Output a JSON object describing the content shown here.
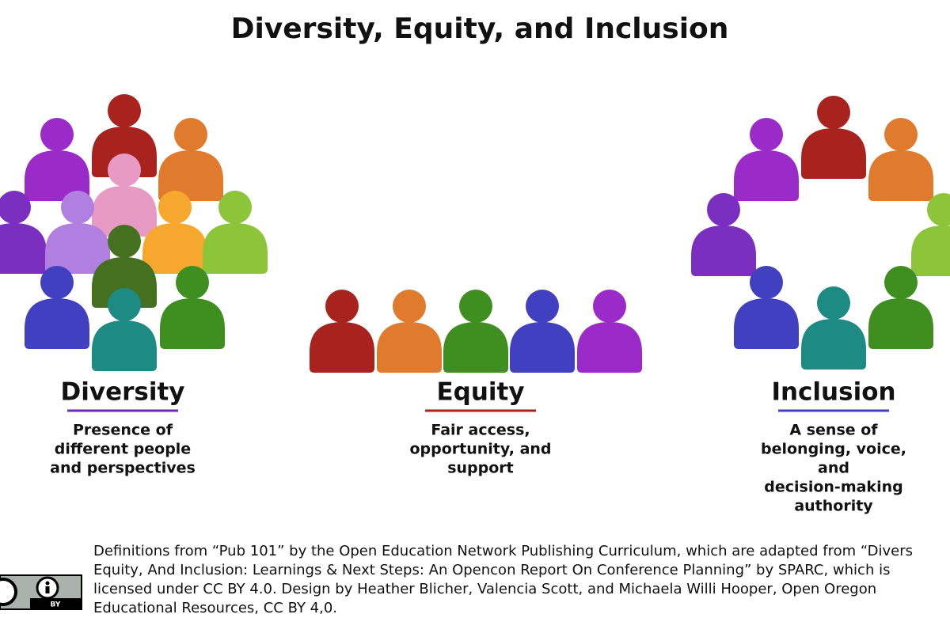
{
  "title": "Diversity, Equity, and Inclusion",
  "sections": [
    {
      "heading": "Diversity",
      "description": [
        "Presence of",
        "different people",
        "and perspectives"
      ]
    },
    {
      "heading": "Equity",
      "description": [
        "Fair access,",
        "opportunity, and",
        "support"
      ]
    },
    {
      "heading": "Inclusion",
      "description": [
        "A sense of",
        "belonging, voice,",
        "and",
        "decision-making",
        "authority"
      ]
    }
  ],
  "footer": {
    "lines": [
      "Definitions from “Pub 101” by the Open Education Network Publishing Curriculum, which are adapted from  “Divers",
      "Equity, And Inclusion: Learnings & Next Steps: An Opencon Report On Conference Planning” by SPARC, which is",
      "licensed under CC BY 4.0. Design by Heather Blicher, Valencia Scott, and Michaela Willi Hooper, Open Oregon",
      "Educational Resources, CC BY 4,0."
    ],
    "badge": "BY"
  }
}
